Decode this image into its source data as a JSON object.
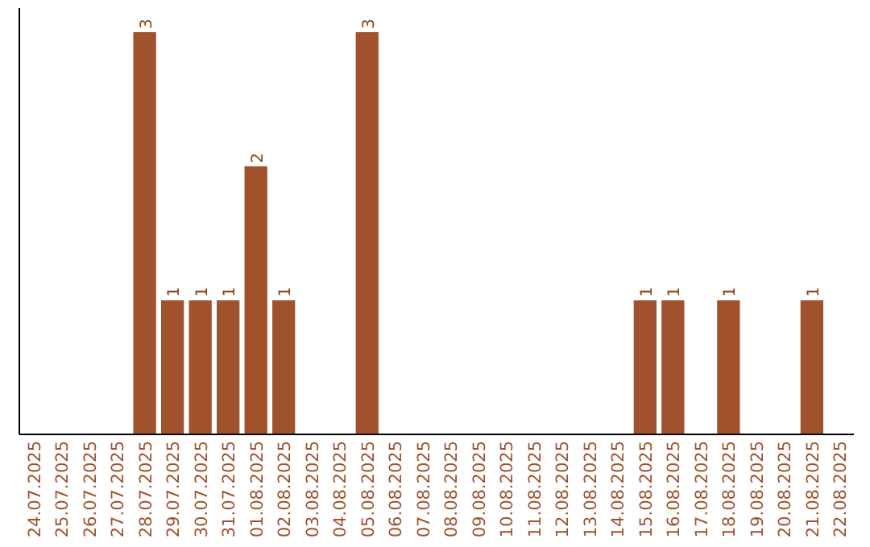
{
  "chart_data": {
    "type": "bar",
    "categories": [
      "24.07.2025",
      "25.07.2025",
      "26.07.2025",
      "27.07.2025",
      "28.07.2025",
      "29.07.2025",
      "30.07.2025",
      "31.07.2025",
      "01.08.2025",
      "02.08.2025",
      "03.08.2025",
      "04.08.2025",
      "05.08.2025",
      "06.08.2025",
      "07.08.2025",
      "08.08.2025",
      "09.08.2025",
      "10.08.2025",
      "11.08.2025",
      "12.08.2025",
      "13.08.2025",
      "14.08.2025",
      "15.08.2025",
      "16.08.2025",
      "17.08.2025",
      "18.08.2025",
      "19.08.2025",
      "20.08.2025",
      "21.08.2025",
      "22.08.2025"
    ],
    "values": [
      0,
      0,
      0,
      0,
      3,
      1,
      1,
      1,
      2,
      1,
      0,
      0,
      3,
      0,
      0,
      0,
      0,
      0,
      0,
      0,
      0,
      0,
      1,
      1,
      0,
      1,
      0,
      0,
      1,
      0
    ],
    "value_labels": [
      null,
      null,
      null,
      null,
      "3",
      "1",
      "1",
      "1",
      "2",
      "1",
      null,
      null,
      "3",
      null,
      null,
      null,
      null,
      null,
      null,
      null,
      null,
      null,
      "1",
      "1",
      null,
      "1",
      null,
      null,
      "1",
      null
    ],
    "color": "#a0522d"
  }
}
